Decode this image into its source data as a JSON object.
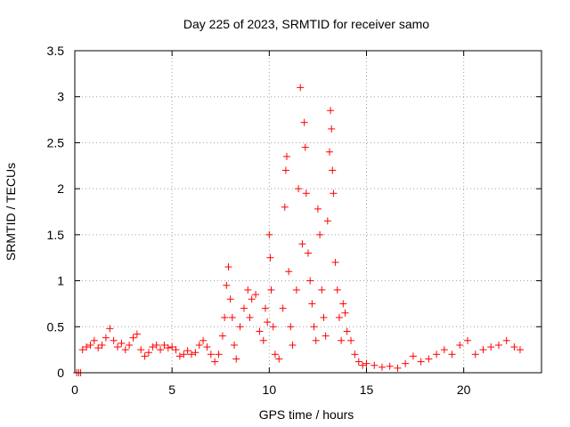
{
  "chart_data": {
    "type": "scatter",
    "title": "Day 225 of 2023, SRMTID for receiver samo",
    "xlabel": "GPS time / hours",
    "ylabel": "SRMTID / TECUs",
    "xlim": [
      0,
      24
    ],
    "ylim": [
      0,
      3.5
    ],
    "x_ticks": [
      0,
      5,
      10,
      15,
      20
    ],
    "x_tick_labels": [
      "0",
      "5",
      "10",
      "15",
      "20"
    ],
    "y_ticks": [
      0,
      0.5,
      1,
      1.5,
      2,
      2.5,
      3,
      3.5
    ],
    "y_tick_labels": [
      "0",
      "0.5",
      "1",
      "1.5",
      "2",
      "2.5",
      "3",
      "3.5"
    ],
    "grid": true,
    "marker": "+",
    "series": [
      {
        "name": "SRMTID",
        "color": "#ff0000",
        "points": [
          [
            0.1,
            0.0
          ],
          [
            0.2,
            0.0
          ],
          [
            0.3,
            0.0
          ],
          [
            0.4,
            0.25
          ],
          [
            0.6,
            0.28
          ],
          [
            0.8,
            0.3
          ],
          [
            1.0,
            0.35
          ],
          [
            1.2,
            0.27
          ],
          [
            1.4,
            0.3
          ],
          [
            1.6,
            0.38
          ],
          [
            1.8,
            0.48
          ],
          [
            2.0,
            0.35
          ],
          [
            2.2,
            0.28
          ],
          [
            2.4,
            0.32
          ],
          [
            2.6,
            0.25
          ],
          [
            2.8,
            0.3
          ],
          [
            3.0,
            0.38
          ],
          [
            3.2,
            0.42
          ],
          [
            3.4,
            0.25
          ],
          [
            3.6,
            0.18
          ],
          [
            3.8,
            0.22
          ],
          [
            4.0,
            0.28
          ],
          [
            4.2,
            0.3
          ],
          [
            4.4,
            0.25
          ],
          [
            4.6,
            0.3
          ],
          [
            4.8,
            0.27
          ],
          [
            5.0,
            0.28
          ],
          [
            5.2,
            0.25
          ],
          [
            5.4,
            0.18
          ],
          [
            5.6,
            0.2
          ],
          [
            5.8,
            0.24
          ],
          [
            6.0,
            0.2
          ],
          [
            6.2,
            0.22
          ],
          [
            6.4,
            0.3
          ],
          [
            6.6,
            0.35
          ],
          [
            6.8,
            0.28
          ],
          [
            7.0,
            0.2
          ],
          [
            7.2,
            0.12
          ],
          [
            7.4,
            0.2
          ],
          [
            7.6,
            0.4
          ],
          [
            7.7,
            0.6
          ],
          [
            7.8,
            0.95
          ],
          [
            7.9,
            1.15
          ],
          [
            8.0,
            0.8
          ],
          [
            8.1,
            0.6
          ],
          [
            8.2,
            0.3
          ],
          [
            8.3,
            0.15
          ],
          [
            8.5,
            0.5
          ],
          [
            8.7,
            0.7
          ],
          [
            8.9,
            0.9
          ],
          [
            9.0,
            0.6
          ],
          [
            9.1,
            0.8
          ],
          [
            9.3,
            0.85
          ],
          [
            9.5,
            0.45
          ],
          [
            9.7,
            0.35
          ],
          [
            9.8,
            0.7
          ],
          [
            9.9,
            0.55
          ],
          [
            10.0,
            1.5
          ],
          [
            10.05,
            1.25
          ],
          [
            10.1,
            0.9
          ],
          [
            10.2,
            0.5
          ],
          [
            10.3,
            0.2
          ],
          [
            10.5,
            0.15
          ],
          [
            10.7,
            0.7
          ],
          [
            10.8,
            1.8
          ],
          [
            10.85,
            2.2
          ],
          [
            10.9,
            2.35
          ],
          [
            11.0,
            1.1
          ],
          [
            11.1,
            0.5
          ],
          [
            11.2,
            0.3
          ],
          [
            11.4,
            0.9
          ],
          [
            11.5,
            2.0
          ],
          [
            11.6,
            3.1
          ],
          [
            11.7,
            1.4
          ],
          [
            11.8,
            2.72
          ],
          [
            11.85,
            2.45
          ],
          [
            11.9,
            1.95
          ],
          [
            12.0,
            1.3
          ],
          [
            12.1,
            1.0
          ],
          [
            12.2,
            0.75
          ],
          [
            12.3,
            0.5
          ],
          [
            12.4,
            0.35
          ],
          [
            12.5,
            1.78
          ],
          [
            12.6,
            1.5
          ],
          [
            12.7,
            0.9
          ],
          [
            12.8,
            0.6
          ],
          [
            12.9,
            0.4
          ],
          [
            13.0,
            1.65
          ],
          [
            13.1,
            2.4
          ],
          [
            13.15,
            2.85
          ],
          [
            13.2,
            2.65
          ],
          [
            13.25,
            2.2
          ],
          [
            13.3,
            1.95
          ],
          [
            13.4,
            1.2
          ],
          [
            13.5,
            0.9
          ],
          [
            13.6,
            0.6
          ],
          [
            13.7,
            0.35
          ],
          [
            13.8,
            0.75
          ],
          [
            13.9,
            0.65
          ],
          [
            14.0,
            0.45
          ],
          [
            14.2,
            0.35
          ],
          [
            14.4,
            0.2
          ],
          [
            14.6,
            0.12
          ],
          [
            14.8,
            0.08
          ],
          [
            15.0,
            0.1
          ],
          [
            15.4,
            0.08
          ],
          [
            15.8,
            0.06
          ],
          [
            16.2,
            0.07
          ],
          [
            16.6,
            0.05
          ],
          [
            17.0,
            0.1
          ],
          [
            17.4,
            0.18
          ],
          [
            17.8,
            0.12
          ],
          [
            18.2,
            0.15
          ],
          [
            18.6,
            0.2
          ],
          [
            19.0,
            0.25
          ],
          [
            19.4,
            0.2
          ],
          [
            19.8,
            0.3
          ],
          [
            20.2,
            0.35
          ],
          [
            20.6,
            0.2
          ],
          [
            21.0,
            0.25
          ],
          [
            21.4,
            0.28
          ],
          [
            21.8,
            0.3
          ],
          [
            22.2,
            0.35
          ],
          [
            22.6,
            0.28
          ],
          [
            22.9,
            0.25
          ]
        ]
      }
    ]
  }
}
